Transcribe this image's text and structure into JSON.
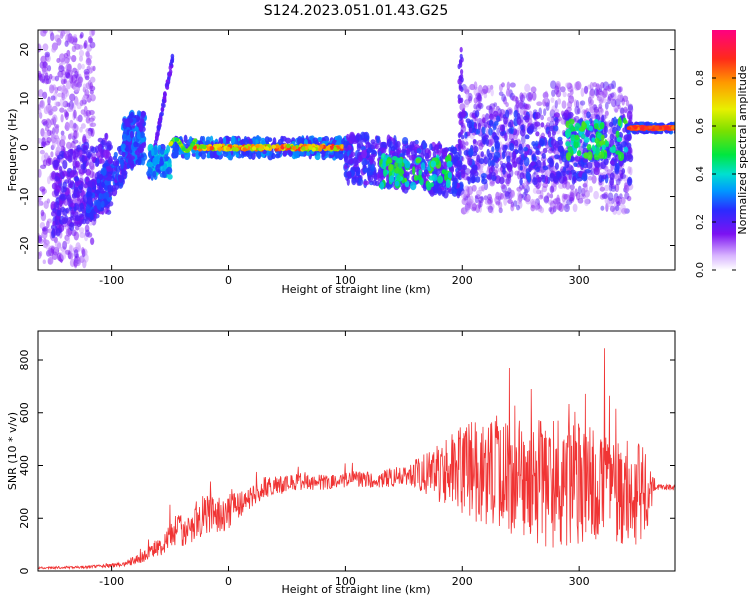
{
  "chart_data": [
    {
      "type": "heatmap",
      "title": "S124.2023.051.01.43.G25",
      "xlabel": "Height of straight line (km)",
      "ylabel": "Frequency (Hz)",
      "xlim": [
        -163,
        382
      ],
      "ylim": [
        -25,
        24
      ],
      "x_ticks": [
        -100,
        0,
        100,
        200,
        300
      ],
      "y_ticks": [
        -20,
        -10,
        0,
        10,
        20
      ],
      "grid": false,
      "colorbar": {
        "label": "Normalized spectral amplitude",
        "range": [
          0,
          1
        ],
        "ticks": [
          0.0,
          0.2,
          0.4,
          0.6,
          0.8
        ]
      },
      "features": [
        {
          "label": "narrow ridge",
          "x": [
            -30,
            100
          ],
          "frequency": 0,
          "amplitude": 0.85
        },
        {
          "label": "narrow ridge",
          "x": [
            340,
            382
          ],
          "frequency": 4,
          "amplitude": 0.9
        },
        {
          "label": "rising streak",
          "x": [
            -68,
            -48
          ],
          "frequency": [
            -6,
            18
          ],
          "amplitude": 0.2
        },
        {
          "label": "spike",
          "x": 198,
          "frequency": [
            0,
            20
          ],
          "amplitude": 0.3
        }
      ]
    },
    {
      "type": "line",
      "xlabel": "Height of straight line (km)",
      "ylabel": "SNR (10 * v/v)",
      "xlim": [
        -163,
        382
      ],
      "ylim": [
        0,
        910
      ],
      "x_ticks": [
        -100,
        0,
        100,
        200,
        300
      ],
      "y_ticks": [
        0,
        200,
        400,
        600,
        800
      ],
      "grid": false,
      "series": [
        {
          "color": "#f03434",
          "x": [
            -163,
            -120,
            -90,
            -70,
            -55,
            -45,
            -35,
            -25,
            -15,
            -5,
            5,
            15,
            25,
            35,
            50,
            65,
            80,
            95,
            110,
            125,
            140,
            155,
            170,
            185,
            200,
            215,
            230,
            245,
            260,
            275,
            290,
            305,
            320,
            335,
            350,
            356,
            365,
            382
          ],
          "y": [
            12,
            15,
            25,
            60,
            110,
            155,
            160,
            200,
            220,
            210,
            240,
            265,
            300,
            320,
            330,
            340,
            335,
            345,
            350,
            345,
            355,
            365,
            370,
            375,
            385,
            380,
            360,
            350,
            340,
            335,
            330,
            325,
            320,
            310,
            300,
            280,
            320,
            315
          ],
          "spread": [
            4,
            5,
            10,
            25,
            45,
            60,
            70,
            80,
            75,
            70,
            60,
            45,
            40,
            35,
            35,
            35,
            30,
            30,
            30,
            30,
            35,
            45,
            80,
            130,
            170,
            200,
            220,
            230,
            240,
            250,
            240,
            230,
            220,
            210,
            200,
            180,
            12,
            10
          ]
        }
      ]
    }
  ]
}
